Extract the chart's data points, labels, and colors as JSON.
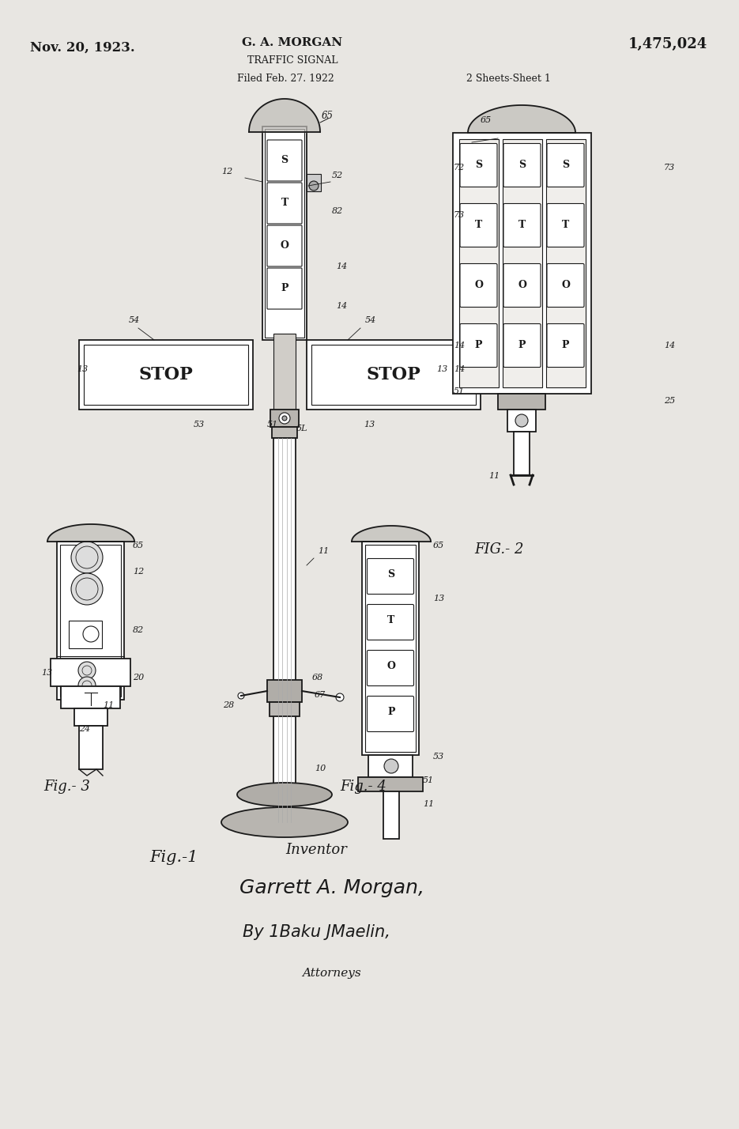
{
  "bg_color": "#e8e6e2",
  "draw_color": "#1a1a1a",
  "title_left": "Nov. 20, 1923.",
  "title_right": "1,475,024",
  "title_center1": "G. A. MORGAN",
  "title_center2": "TRAFFIC SIGNAL",
  "title_center3": "Filed Feb. 27. 1922",
  "title_right2": "2 Sheets-Sheet 1",
  "fig_label": "Fig.-1",
  "fig2_label": "FIG.- 2",
  "fig3_label": "Fig.- 3",
  "fig4_label": "Fig.- 4",
  "inventor_label": "Inventor",
  "inventor_name": "Garrett A. Morgan,",
  "attorney_by": "By 1Baku JMaelin,",
  "attorney_label": "Attorneys"
}
